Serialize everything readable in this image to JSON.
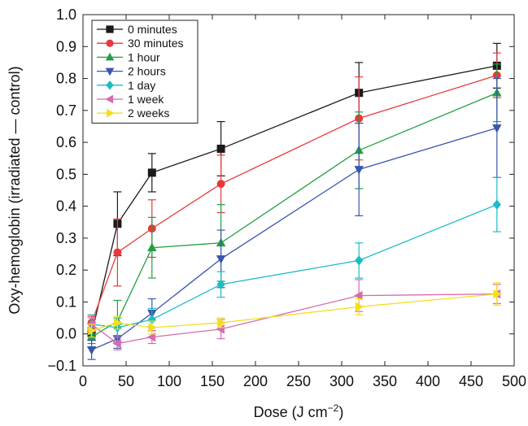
{
  "chart_data": {
    "type": "line",
    "xlabel": "Dose (J cm",
    "xlabel_sup": "−2",
    "xlabel_suffix": ")",
    "ylabel": "Oxy-hemoglobin (irradiated — control)",
    "xlim": [
      0,
      500
    ],
    "ylim": [
      -0.1,
      1.0
    ],
    "x_ticks": [
      0,
      50,
      100,
      150,
      200,
      250,
      300,
      350,
      400,
      450,
      500
    ],
    "x_tick_labels": [
      "0",
      "50",
      "100",
      "150",
      "200",
      "250",
      "300",
      "350",
      "400",
      "450",
      "500"
    ],
    "y_ticks": [
      -0.1,
      0.0,
      0.1,
      0.2,
      0.3,
      0.4,
      0.5,
      0.6,
      0.7,
      0.8,
      0.9,
      1.0
    ],
    "y_tick_labels": [
      "−0.1",
      "0.0",
      "0.1",
      "0.2",
      "0.3",
      "0.4",
      "0.5",
      "0.6",
      "0.7",
      "0.8",
      "0.9",
      "1.0"
    ],
    "grid": false,
    "legend_position": "top-left",
    "x": [
      10,
      40,
      80,
      160,
      320,
      480
    ],
    "series": [
      {
        "name": "0 minutes",
        "color": "#1a1a1a",
        "marker": "square",
        "values": [
          0.0,
          0.345,
          0.505,
          0.58,
          0.755,
          0.84
        ],
        "errors": [
          0.02,
          0.1,
          0.06,
          0.085,
          0.095,
          0.07
        ]
      },
      {
        "name": "30 minutes",
        "color": "#e8393a",
        "marker": "circle",
        "values": [
          0.035,
          0.255,
          0.33,
          0.47,
          0.675,
          0.81
        ],
        "errors": [
          0.02,
          0.105,
          0.09,
          0.09,
          0.13,
          0.07
        ]
      },
      {
        "name": "1 hour",
        "color": "#21a042",
        "marker": "triangle-up",
        "values": [
          -0.01,
          0.04,
          0.27,
          0.285,
          0.575,
          0.755
        ],
        "errors": [
          0.02,
          0.065,
          0.095,
          0.12,
          0.12,
          0.09
        ]
      },
      {
        "name": "2 hours",
        "color": "#3a55b0",
        "marker": "triangle-down",
        "values": [
          -0.05,
          -0.015,
          0.065,
          0.235,
          0.515,
          0.645
        ],
        "errors": [
          0.03,
          0.03,
          0.045,
          0.09,
          0.145,
          0.155
        ]
      },
      {
        "name": "1 day",
        "color": "#1cbcc6",
        "marker": "diamond",
        "values": [
          0.03,
          0.02,
          0.045,
          0.155,
          0.23,
          0.405
        ],
        "errors": [
          0.03,
          0.03,
          0.035,
          0.04,
          0.055,
          0.085
        ]
      },
      {
        "name": "1 week",
        "color": "#d769b0",
        "marker": "triangle-left",
        "values": [
          0.03,
          -0.03,
          -0.01,
          0.015,
          0.12,
          0.125
        ],
        "errors": [
          0.02,
          0.02,
          0.02,
          0.03,
          0.05,
          0.03
        ]
      },
      {
        "name": "2 weeks",
        "color": "#f2de1e",
        "marker": "triangle-right",
        "values": [
          0.01,
          0.035,
          0.02,
          0.035,
          0.085,
          0.125
        ],
        "errors": [
          0.02,
          0.02,
          0.02,
          0.015,
          0.025,
          0.035
        ]
      }
    ]
  }
}
